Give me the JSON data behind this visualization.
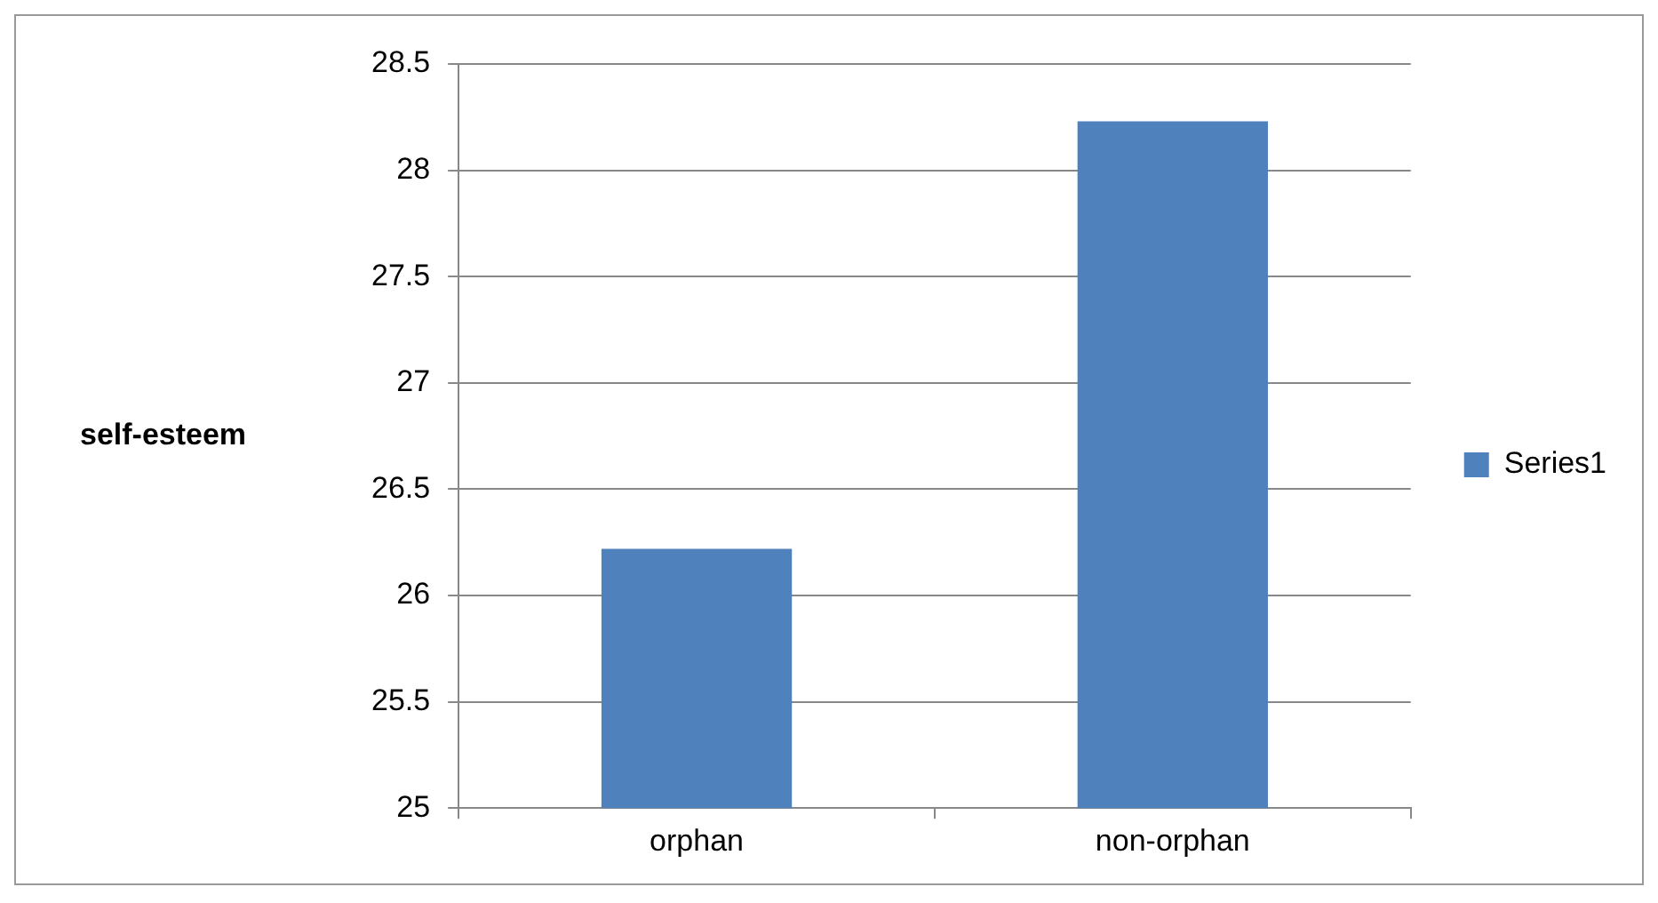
{
  "chart_data": {
    "type": "bar",
    "ylabel": "self-esteem",
    "categories": [
      "orphan",
      "non-orphan"
    ],
    "series": [
      {
        "name": "Series1",
        "color": "#4f81bd",
        "values": [
          26.22,
          28.23
        ]
      }
    ],
    "ylim": [
      25,
      28.5
    ],
    "yticks": [
      25,
      25.5,
      26,
      26.5,
      27,
      27.5,
      28,
      28.5
    ],
    "grid": "y",
    "legend": "right"
  }
}
